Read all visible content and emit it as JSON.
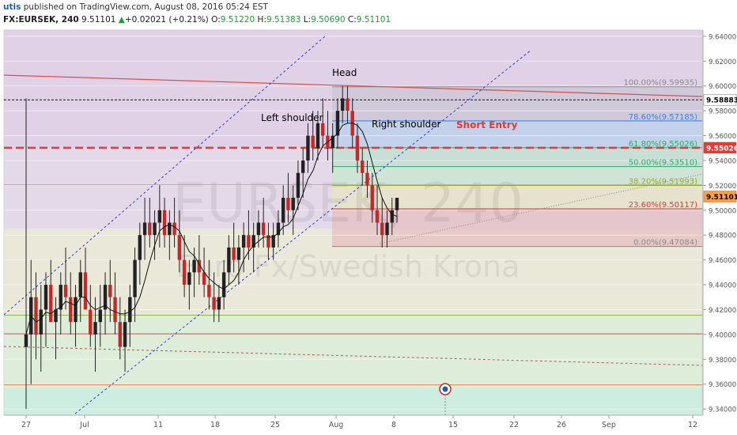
{
  "header": {
    "author": "utis",
    "published": "published on TradingView.com, August 08, 2016 05:24 EST",
    "symbol": "FX:EURSEK, 240",
    "last": "9.51101",
    "change_arrow": "▲",
    "change": "+0.02021 (+0.21%)",
    "o_label": "O:",
    "o": "9.51220",
    "h_label": "H:",
    "h": "9.51383",
    "l_label": "L:",
    "l": "9.50690",
    "c_label": "C:",
    "c": "9.51101"
  },
  "watermark": {
    "symbol": "EURSEK, 240",
    "name": "Euro Fx/Swedish Krona"
  },
  "chart_data": {
    "type": "candlestick",
    "x_ticks": [
      "27",
      "Jul",
      "11",
      "18",
      "25",
      "Aug",
      "8",
      "15",
      "22",
      "26",
      "Sep",
      "12"
    ],
    "y_ticks": [
      "9.64000",
      "9.62000",
      "9.60000",
      "9.58000",
      "9.56000",
      "9.54000",
      "9.52000",
      "9.50000",
      "9.48000",
      "9.46000",
      "9.44000",
      "9.42000",
      "9.40000",
      "9.38000",
      "9.36000",
      "9.34000"
    ],
    "ylim": [
      9.335,
      9.645
    ],
    "price_tags": [
      {
        "value": 9.58883,
        "text": "9.58883",
        "fill": "#ffffff",
        "color": "#000000"
      },
      {
        "value": 9.55026,
        "text": "9.55026",
        "fill": "#e53935",
        "color": "#ffffff"
      },
      {
        "value": 9.51101,
        "text": "9.51101",
        "fill": "#ff9f43",
        "color": "#000000"
      }
    ],
    "fib_levels": [
      {
        "text": "100.00%(9.59935)",
        "value": 9.59935,
        "color": "#8a8a8a"
      },
      {
        "text": "78.60%(9.57185)",
        "value": 9.57185,
        "color": "#3f7fd6"
      },
      {
        "text": "61.80%(9.55026)",
        "value": 9.55026,
        "color": "#2bab6a"
      },
      {
        "text": "50.00%(9.53510)",
        "value": 9.5351,
        "color": "#2bab6a"
      },
      {
        "text": "38.20%(9.51993)",
        "value": 9.51993,
        "color": "#9aaa2a"
      },
      {
        "text": "23.60%(9.50117)",
        "value": 9.50117,
        "color": "#e53935"
      },
      {
        "text": "0.00%(9.47084)",
        "value": 9.47084,
        "color": "#8a8a8a"
      }
    ],
    "annotations": [
      {
        "text": "Head",
        "color": "#000000"
      },
      {
        "text": "Left shoulder",
        "color": "#000000"
      },
      {
        "text": "Right shoulder",
        "color": "#000000"
      },
      {
        "text": "Short Entry",
        "color": "#e53935"
      }
    ],
    "short_entry_level": 9.55026,
    "neckline_level": 9.58883,
    "candles": [
      [
        9.39,
        9.59,
        9.34,
        9.4
      ],
      [
        9.4,
        9.46,
        9.36,
        9.43
      ],
      [
        9.43,
        9.45,
        9.38,
        9.4
      ],
      [
        9.4,
        9.44,
        9.37,
        9.42
      ],
      [
        9.42,
        9.45,
        9.39,
        9.44
      ],
      [
        9.44,
        9.46,
        9.41,
        9.41
      ],
      [
        9.41,
        9.43,
        9.38,
        9.42
      ],
      [
        9.42,
        9.45,
        9.4,
        9.44
      ],
      [
        9.44,
        9.47,
        9.42,
        9.43
      ],
      [
        9.43,
        9.45,
        9.4,
        9.41
      ],
      [
        9.41,
        9.44,
        9.39,
        9.43
      ],
      [
        9.43,
        9.46,
        9.41,
        9.45
      ],
      [
        9.45,
        9.47,
        9.42,
        9.42
      ],
      [
        9.42,
        9.44,
        9.39,
        9.4
      ],
      [
        9.4,
        9.43,
        9.37,
        9.41
      ],
      [
        9.41,
        9.44,
        9.39,
        9.42
      ],
      [
        9.42,
        9.45,
        9.4,
        9.44
      ],
      [
        9.44,
        9.46,
        9.41,
        9.43
      ],
      [
        9.43,
        9.45,
        9.4,
        9.41
      ],
      [
        9.41,
        9.43,
        9.38,
        9.39
      ],
      [
        9.39,
        9.42,
        9.37,
        9.41
      ],
      [
        9.41,
        9.44,
        9.39,
        9.43
      ],
      [
        9.43,
        9.47,
        9.41,
        9.46
      ],
      [
        9.46,
        9.49,
        9.44,
        9.48
      ],
      [
        9.48,
        9.51,
        9.46,
        9.49
      ],
      [
        9.49,
        9.51,
        9.47,
        9.48
      ],
      [
        9.48,
        9.5,
        9.46,
        9.49
      ],
      [
        9.49,
        9.52,
        9.47,
        9.5
      ],
      [
        9.5,
        9.51,
        9.47,
        9.48
      ],
      [
        9.48,
        9.5,
        9.46,
        9.49
      ],
      [
        9.49,
        9.51,
        9.47,
        9.48
      ],
      [
        9.48,
        9.5,
        9.45,
        9.46
      ],
      [
        9.46,
        9.48,
        9.43,
        9.44
      ],
      [
        9.44,
        9.46,
        9.42,
        9.45
      ],
      [
        9.45,
        9.47,
        9.43,
        9.46
      ],
      [
        9.46,
        9.48,
        9.44,
        9.45
      ],
      [
        9.45,
        9.47,
        9.43,
        9.44
      ],
      [
        9.44,
        9.46,
        9.42,
        9.43
      ],
      [
        9.43,
        9.45,
        9.41,
        9.42
      ],
      [
        9.42,
        9.44,
        9.41,
        9.43
      ],
      [
        9.43,
        9.46,
        9.42,
        9.45
      ],
      [
        9.45,
        9.48,
        9.44,
        9.47
      ],
      [
        9.47,
        9.49,
        9.45,
        9.46
      ],
      [
        9.46,
        9.48,
        9.44,
        9.47
      ],
      [
        9.47,
        9.49,
        9.45,
        9.48
      ],
      [
        9.48,
        9.5,
        9.46,
        9.47
      ],
      [
        9.47,
        9.49,
        9.45,
        9.48
      ],
      [
        9.48,
        9.5,
        9.47,
        9.49
      ],
      [
        9.49,
        9.51,
        9.47,
        9.48
      ],
      [
        9.48,
        9.49,
        9.46,
        9.47
      ],
      [
        9.47,
        9.49,
        9.46,
        9.48
      ],
      [
        9.48,
        9.5,
        9.47,
        9.49
      ],
      [
        9.49,
        9.52,
        9.48,
        9.51
      ],
      [
        9.51,
        9.53,
        9.49,
        9.5
      ],
      [
        9.5,
        9.52,
        9.48,
        9.51
      ],
      [
        9.51,
        9.54,
        9.5,
        9.53
      ],
      [
        9.53,
        9.55,
        9.51,
        9.54
      ],
      [
        9.54,
        9.57,
        9.53,
        9.56
      ],
      [
        9.56,
        9.58,
        9.54,
        9.55
      ],
      [
        9.55,
        9.58,
        9.54,
        9.57
      ],
      [
        9.57,
        9.59,
        9.55,
        9.56
      ],
      [
        9.56,
        9.58,
        9.54,
        9.55
      ],
      [
        9.55,
        9.57,
        9.53,
        9.56
      ],
      [
        9.56,
        9.59,
        9.55,
        9.58
      ],
      [
        9.58,
        9.6,
        9.57,
        9.59
      ],
      [
        9.59,
        9.6,
        9.57,
        9.58
      ],
      [
        9.58,
        9.59,
        9.55,
        9.56
      ],
      [
        9.56,
        9.57,
        9.53,
        9.54
      ],
      [
        9.54,
        9.55,
        9.52,
        9.53
      ],
      [
        9.53,
        9.54,
        9.51,
        9.52
      ],
      [
        9.52,
        9.53,
        9.49,
        9.5
      ],
      [
        9.5,
        9.52,
        9.48,
        9.49
      ],
      [
        9.49,
        9.51,
        9.47,
        9.48
      ],
      [
        9.48,
        9.5,
        9.47,
        9.49
      ],
      [
        9.49,
        9.51,
        9.48,
        9.5
      ],
      [
        9.5,
        9.51,
        9.49,
        9.51
      ]
    ]
  }
}
